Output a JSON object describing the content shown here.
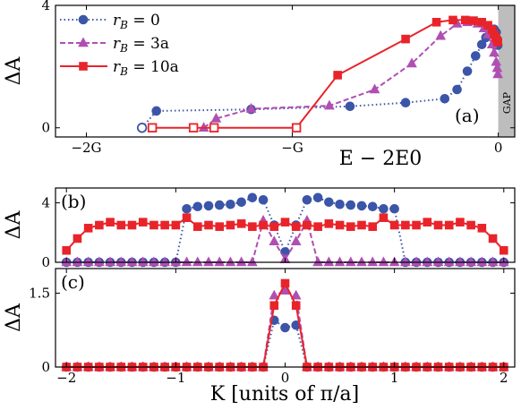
{
  "colors": {
    "blue": "#3b55a8",
    "purple": "#b04fb3",
    "red": "#e8242a",
    "gap": "#bdbdbd"
  },
  "legend": [
    "r_B = 0",
    "r_B = 3a",
    "r_B = 10a"
  ],
  "legend_parts": [
    {
      "sym": "r",
      "sub": "B",
      "rest": "= 0"
    },
    {
      "sym": "r",
      "sub": "B",
      "rest": "= 3a"
    },
    {
      "sym": "r",
      "sub": "B",
      "rest": "= 10a"
    }
  ],
  "chart_data": [
    {
      "panel": "(a)",
      "type": "line",
      "xlabel": "E − 2E0",
      "ylabel": "ΔA",
      "xticks": [
        "−2G",
        "−G",
        "0"
      ],
      "yticks": [
        "0",
        "4"
      ],
      "xlim": [
        -2.15,
        0.08
      ],
      "ylim": [
        -0.3,
        4.0
      ],
      "annotation": "GAP",
      "gap_region": [
        0.0,
        0.08
      ],
      "series": [
        {
          "name": "r_B = 0",
          "color": "blue",
          "marker": "circle",
          "dash": "dotted",
          "x": [
            -1.73,
            -1.66,
            -1.2,
            -0.72,
            -0.45,
            -0.26,
            -0.2,
            -0.15,
            -0.11,
            -0.08,
            -0.06,
            -0.04,
            -0.03,
            -0.02,
            -0.01,
            -0.004,
            -0.002
          ],
          "y": [
            0.0,
            0.55,
            0.6,
            0.7,
            0.82,
            0.95,
            1.25,
            1.85,
            2.35,
            2.72,
            2.95,
            3.12,
            3.2,
            3.22,
            3.12,
            2.88,
            2.7
          ],
          "open_marker_index": 0
        },
        {
          "name": "r_B = 3a",
          "color": "purple",
          "marker": "triangle",
          "dash": "dashed",
          "x": [
            -1.43,
            -1.37,
            -1.2,
            -0.82,
            -0.6,
            -0.42,
            -0.28,
            -0.2,
            -0.15,
            -0.1,
            -0.07,
            -0.05,
            -0.03,
            -0.02,
            -0.01,
            -0.005,
            -0.002
          ],
          "y": [
            0.0,
            0.3,
            0.62,
            0.72,
            1.25,
            2.1,
            3.0,
            3.4,
            3.45,
            3.4,
            3.25,
            3.05,
            2.72,
            2.45,
            2.15,
            1.95,
            1.75
          ]
        },
        {
          "name": "r_B = 10a",
          "color": "red",
          "marker": "square",
          "dash": "solid",
          "x": [
            -1.68,
            -1.48,
            -1.38,
            -0.98,
            -0.78,
            -0.45,
            -0.3,
            -0.22,
            -0.16,
            -0.12,
            -0.08,
            -0.05,
            -0.03,
            -0.02,
            -0.012,
            -0.006,
            -0.002
          ],
          "y": [
            0.0,
            0.0,
            0.0,
            0.0,
            1.72,
            2.9,
            3.45,
            3.52,
            3.52,
            3.5,
            3.45,
            3.35,
            3.2,
            3.05,
            2.95,
            2.85,
            2.8
          ],
          "open_marker_indices": [
            0,
            1,
            2,
            3
          ]
        }
      ]
    },
    {
      "panel": "(b)",
      "type": "line",
      "ylabel": "ΔA",
      "yticks": [
        "0",
        "4"
      ],
      "xlim": [
        -2.1,
        2.1
      ],
      "ylim": [
        0,
        5.0
      ],
      "series": [
        {
          "name": "r_B = 0",
          "color": "blue",
          "marker": "circle",
          "dash": "dotted",
          "x": [
            -2.0,
            -1.9,
            -1.8,
            -1.7,
            -1.6,
            -1.5,
            -1.4,
            -1.3,
            -1.2,
            -1.1,
            -1.0,
            -0.9,
            -0.8,
            -0.7,
            -0.6,
            -0.5,
            -0.4,
            -0.3,
            -0.2,
            -0.1,
            0.0,
            0.1,
            0.2,
            0.3,
            0.4,
            0.5,
            0.6,
            0.7,
            0.8,
            0.9,
            1.0,
            1.1,
            1.2,
            1.3,
            1.4,
            1.5,
            1.6,
            1.7,
            1.8,
            1.9,
            2.0
          ],
          "y": [
            0,
            0,
            0,
            0,
            0,
            0,
            0,
            0,
            0,
            0,
            0,
            3.6,
            3.75,
            3.8,
            3.85,
            3.9,
            4.05,
            4.35,
            4.2,
            2.5,
            0.7,
            2.5,
            4.2,
            4.35,
            4.05,
            3.9,
            3.85,
            3.8,
            3.75,
            3.6,
            3.6,
            0,
            0,
            0,
            0,
            0,
            0,
            0,
            0,
            0,
            0
          ]
        },
        {
          "name": "r_B = 3a",
          "color": "purple",
          "marker": "triangle",
          "dash": "dashed",
          "x": [
            -2.0,
            -1.9,
            -1.8,
            -1.7,
            -1.6,
            -1.5,
            -1.4,
            -1.3,
            -1.2,
            -1.1,
            -1.0,
            -0.9,
            -0.8,
            -0.7,
            -0.6,
            -0.5,
            -0.4,
            -0.3,
            -0.2,
            -0.1,
            0.0,
            0.1,
            0.2,
            0.3,
            0.4,
            0.5,
            0.6,
            0.7,
            0.8,
            0.9,
            1.0,
            1.1,
            1.2,
            1.3,
            1.4,
            1.5,
            1.6,
            1.7,
            1.8,
            1.9,
            2.0
          ],
          "y": [
            0,
            0,
            0,
            0,
            0,
            0,
            0,
            0,
            0,
            0,
            0,
            0,
            0,
            0,
            0,
            0,
            0,
            0,
            2.8,
            1.4,
            0.2,
            1.4,
            2.8,
            0,
            0,
            0,
            0,
            0,
            0,
            0,
            0,
            0,
            0,
            0,
            0,
            0,
            0,
            0,
            0,
            0,
            0
          ]
        },
        {
          "name": "r_B = 10a",
          "color": "red",
          "marker": "square",
          "dash": "solid",
          "x": [
            -2.0,
            -1.9,
            -1.8,
            -1.7,
            -1.6,
            -1.5,
            -1.4,
            -1.3,
            -1.2,
            -1.1,
            -1.0,
            -0.9,
            -0.8,
            -0.7,
            -0.6,
            -0.5,
            -0.4,
            -0.3,
            -0.2,
            -0.1,
            0.0,
            0.1,
            0.2,
            0.3,
            0.4,
            0.5,
            0.6,
            0.7,
            0.8,
            0.9,
            1.0,
            1.1,
            1.2,
            1.3,
            1.4,
            1.5,
            1.6,
            1.7,
            1.8,
            1.9,
            2.0
          ],
          "y": [
            0.8,
            1.6,
            2.3,
            2.5,
            2.7,
            2.5,
            2.5,
            2.7,
            2.5,
            2.5,
            2.5,
            3.0,
            2.4,
            2.5,
            2.4,
            2.5,
            2.6,
            2.4,
            2.5,
            2.4,
            2.7,
            2.4,
            2.5,
            2.4,
            2.6,
            2.5,
            2.4,
            2.5,
            2.4,
            3.0,
            2.5,
            2.5,
            2.5,
            2.7,
            2.5,
            2.5,
            2.7,
            2.5,
            2.3,
            1.6,
            0.8
          ]
        }
      ]
    },
    {
      "panel": "(c)",
      "type": "line",
      "xlabel": "K [units of π/a]",
      "ylabel": "ΔA",
      "xticks": [
        "−2",
        "−1",
        "0",
        "1",
        "2"
      ],
      "yticks": [
        "0",
        "1.5"
      ],
      "xlim": [
        -2.1,
        2.1
      ],
      "ylim": [
        0,
        2.0
      ],
      "series": [
        {
          "name": "r_B = 0",
          "color": "blue",
          "marker": "circle",
          "dash": "dotted",
          "x": [
            -2.0,
            -1.9,
            -1.8,
            -1.7,
            -1.6,
            -1.5,
            -1.4,
            -1.3,
            -1.2,
            -1.1,
            -1.0,
            -0.9,
            -0.8,
            -0.7,
            -0.6,
            -0.5,
            -0.4,
            -0.3,
            -0.2,
            -0.1,
            0.0,
            0.1,
            0.2,
            0.3,
            0.4,
            0.5,
            0.6,
            0.7,
            0.8,
            0.9,
            1.0,
            1.1,
            1.2,
            1.3,
            1.4,
            1.5,
            1.6,
            1.7,
            1.8,
            1.9,
            2.0
          ],
          "y": [
            0,
            0,
            0,
            0,
            0,
            0,
            0,
            0,
            0,
            0,
            0,
            0,
            0,
            0,
            0,
            0,
            0,
            0,
            0,
            0.95,
            0.8,
            0.85,
            0,
            0,
            0,
            0,
            0,
            0,
            0,
            0,
            0,
            0,
            0,
            0,
            0,
            0,
            0,
            0,
            0,
            0,
            0
          ]
        },
        {
          "name": "r_B = 3a",
          "color": "purple",
          "marker": "triangle",
          "dash": "dashed",
          "x": [
            -2.0,
            -1.9,
            -1.8,
            -1.7,
            -1.6,
            -1.5,
            -1.4,
            -1.3,
            -1.2,
            -1.1,
            -1.0,
            -0.9,
            -0.8,
            -0.7,
            -0.6,
            -0.5,
            -0.4,
            -0.3,
            -0.2,
            -0.1,
            0.0,
            0.1,
            0.2,
            0.3,
            0.4,
            0.5,
            0.6,
            0.7,
            0.8,
            0.9,
            1.0,
            1.1,
            1.2,
            1.3,
            1.4,
            1.5,
            1.6,
            1.7,
            1.8,
            1.9,
            2.0
          ],
          "y": [
            0,
            0,
            0,
            0,
            0,
            0,
            0,
            0,
            0,
            0,
            0,
            0,
            0,
            0,
            0,
            0,
            0,
            0,
            0,
            1.45,
            1.55,
            1.45,
            0,
            0,
            0,
            0,
            0,
            0,
            0,
            0,
            0,
            0,
            0,
            0,
            0,
            0,
            0,
            0,
            0,
            0,
            0
          ]
        },
        {
          "name": "r_B = 10a",
          "color": "red",
          "marker": "square",
          "dash": "solid",
          "x": [
            -2.0,
            -1.9,
            -1.8,
            -1.7,
            -1.6,
            -1.5,
            -1.4,
            -1.3,
            -1.2,
            -1.1,
            -1.0,
            -0.9,
            -0.8,
            -0.7,
            -0.6,
            -0.5,
            -0.4,
            -0.3,
            -0.2,
            -0.1,
            0.0,
            0.1,
            0.2,
            0.3,
            0.4,
            0.5,
            0.6,
            0.7,
            0.8,
            0.9,
            1.0,
            1.1,
            1.2,
            1.3,
            1.4,
            1.5,
            1.6,
            1.7,
            1.8,
            1.9,
            2.0
          ],
          "y": [
            0,
            0,
            0,
            0,
            0,
            0,
            0,
            0,
            0,
            0,
            0,
            0,
            0,
            0,
            0,
            0,
            0,
            0,
            0,
            1.25,
            1.7,
            1.25,
            0,
            0,
            0,
            0,
            0,
            0,
            0,
            0,
            0,
            0,
            0,
            0,
            0,
            0,
            0,
            0,
            0,
            0,
            0
          ]
        }
      ]
    }
  ]
}
